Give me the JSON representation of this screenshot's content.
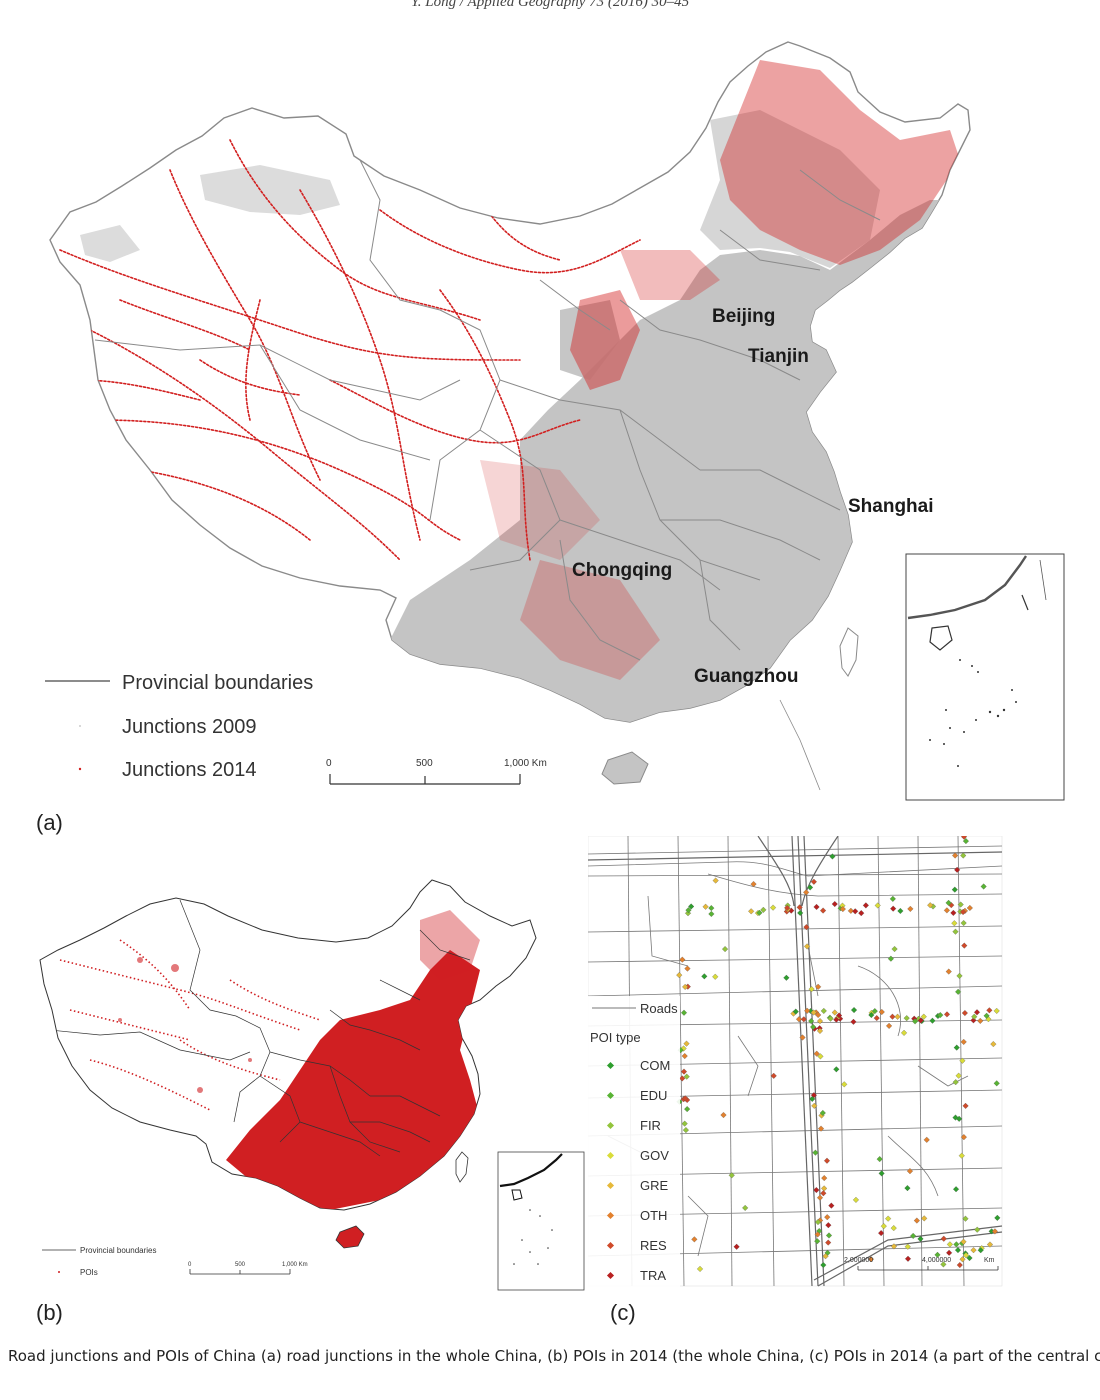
{
  "header": {
    "running_head": "Y. Long / Applied Geography 73 (2016) 30–45"
  },
  "panel_a": {
    "label": "(a)",
    "cities": [
      "Beijing",
      "Tianjin",
      "Shanghai",
      "Chongqing",
      "Guangzhou"
    ],
    "legend": {
      "boundaries": "Provincial boundaries",
      "junctions_2009": "Junctions 2009",
      "junctions_2014": "Junctions 2014"
    },
    "scale": {
      "ticks": [
        "0",
        "500",
        "1,000 Km"
      ]
    }
  },
  "panel_b": {
    "label": "(b)",
    "legend": {
      "boundaries": "Provincial boundaries",
      "pois": "POIs"
    },
    "scale": {
      "ticks": [
        "0",
        "500",
        "1,000 Km"
      ]
    }
  },
  "panel_c": {
    "label": "(c)",
    "legend": {
      "roads": "Roads",
      "poi_type_title": "POI type",
      "types": [
        {
          "code": "COM",
          "color": "#2e9e2e"
        },
        {
          "code": "EDU",
          "color": "#58b334"
        },
        {
          "code": "FIR",
          "color": "#93c43c"
        },
        {
          "code": "GOV",
          "color": "#d9dc3a"
        },
        {
          "code": "GRE",
          "color": "#e6b93a"
        },
        {
          "code": "OTH",
          "color": "#e2812e"
        },
        {
          "code": "RES",
          "color": "#cf4a2a"
        },
        {
          "code": "TRA",
          "color": "#b82020"
        }
      ]
    },
    "scale": {
      "ticks": [
        "2,000000",
        "4,000000",
        "Km"
      ]
    }
  },
  "caption": "Road junctions and POIs of China (a) road junctions in the whole China, (b) POIs in 2014 (the whole China, (c) POIs in 2014 (a part of the central city of B",
  "colors": {
    "land_gray": "#c4c4c4",
    "junction_red": "#d21f1f",
    "boundary": "#8a8a8a"
  }
}
